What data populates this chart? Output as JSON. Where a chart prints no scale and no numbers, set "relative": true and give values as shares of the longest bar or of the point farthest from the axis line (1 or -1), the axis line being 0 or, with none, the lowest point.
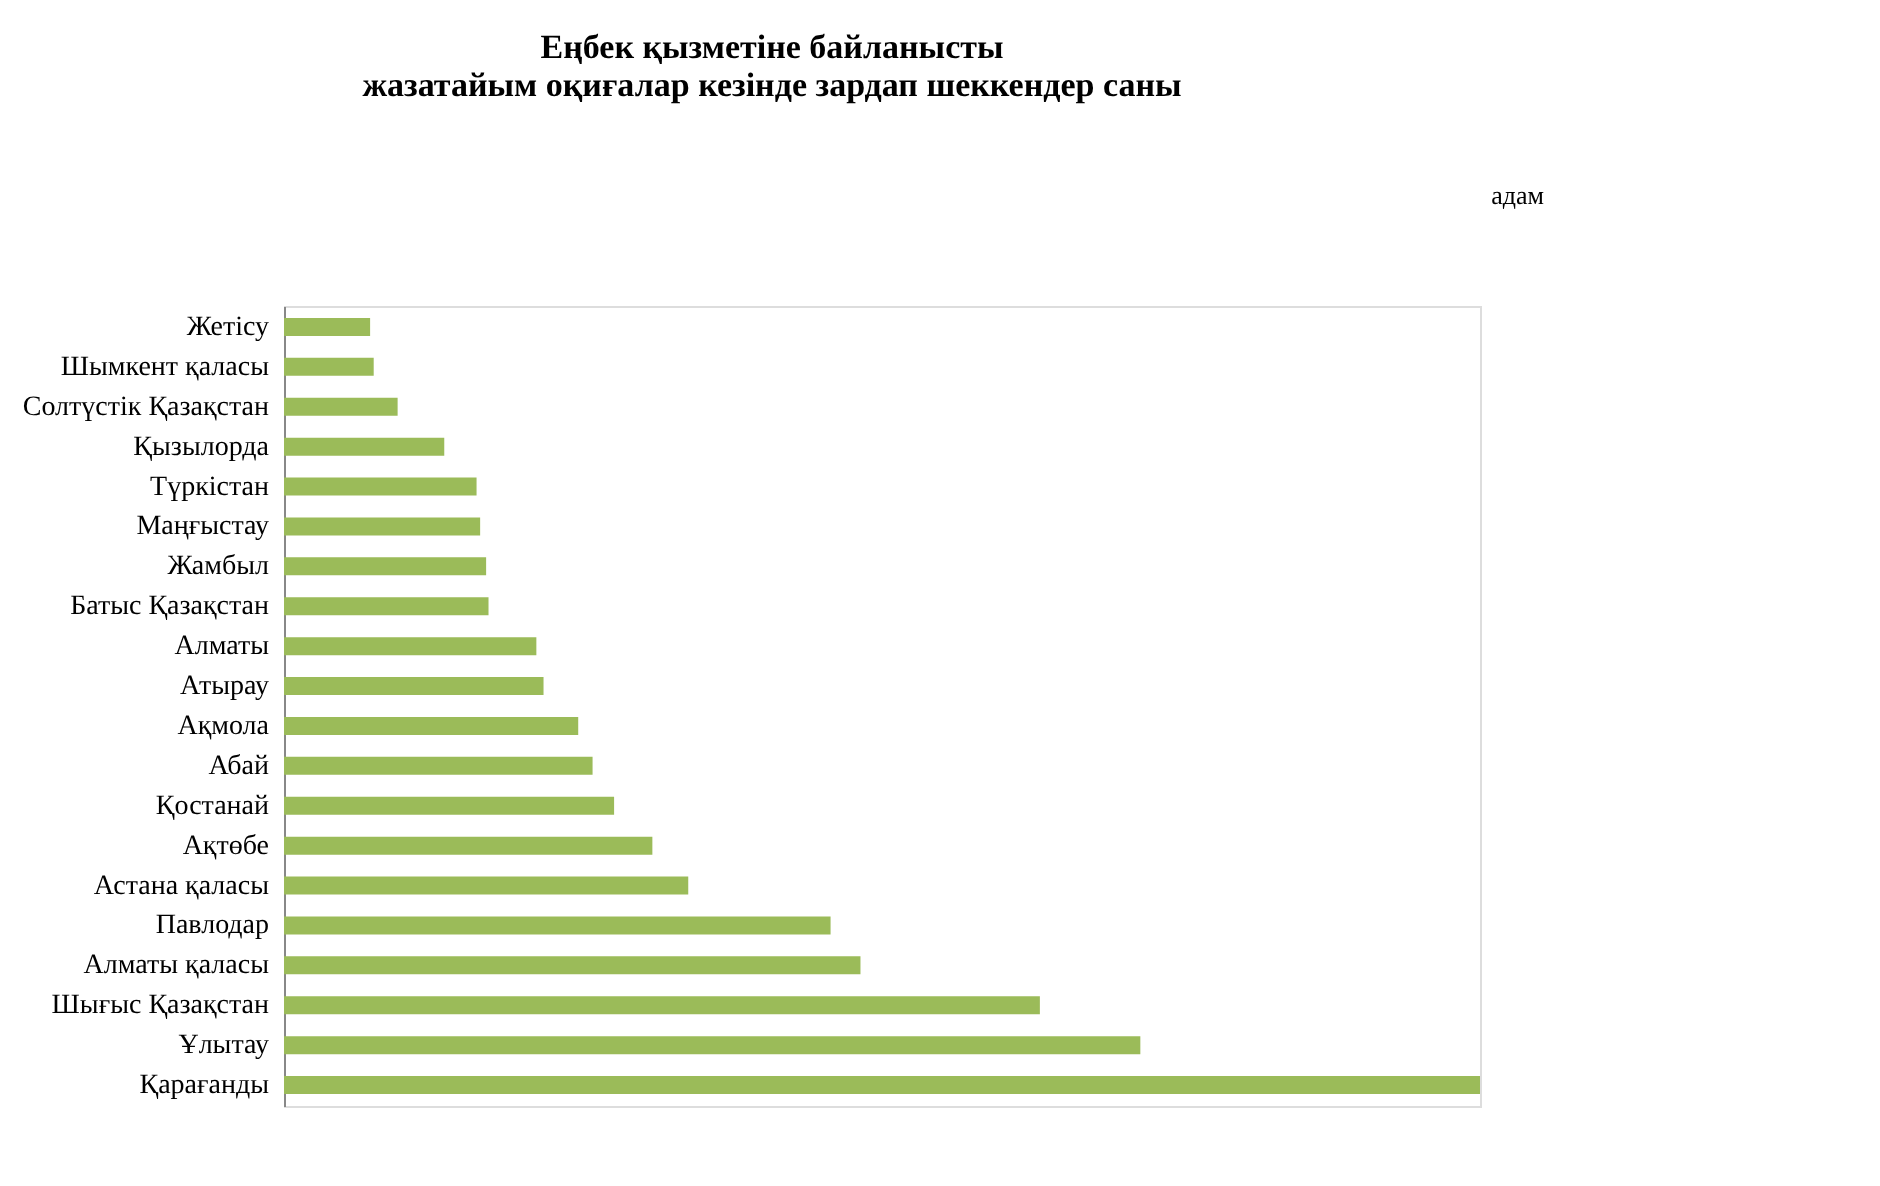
{
  "chart_data": {
    "type": "bar",
    "orientation": "horizontal",
    "relative": true,
    "title": "Еңбек қызметіне байланысты\nжазатайым оқиғалар кезінде зардап шеккендер саны",
    "annotations": [
      "адам"
    ],
    "categories": [
      "Жетісу",
      "Шымкент қаласы",
      "Солтүстік Қазақстан",
      "Қызылорда",
      "Түркістан ",
      "Маңғыстау",
      "Жамбыл",
      "Батыс Қазақстан",
      "Алматы",
      "Атырау",
      "Ақмола",
      "Абай",
      "Қостанай",
      "Ақтөбе",
      "Астана қаласы",
      "Павлодар",
      "Алматы қаласы",
      "Шығыс  Қазақстан",
      "Ұлытау",
      "Қарағанды"
    ],
    "series": [
      {
        "color": "#9bbb59",
        "values": [
          0.072,
          0.075,
          0.095,
          0.134,
          0.161,
          0.164,
          0.169,
          0.171,
          0.211,
          0.217,
          0.246,
          0.258,
          0.276,
          0.308,
          0.338,
          0.457,
          0.482,
          0.632,
          0.716,
          1
        ]
      }
    ]
  }
}
